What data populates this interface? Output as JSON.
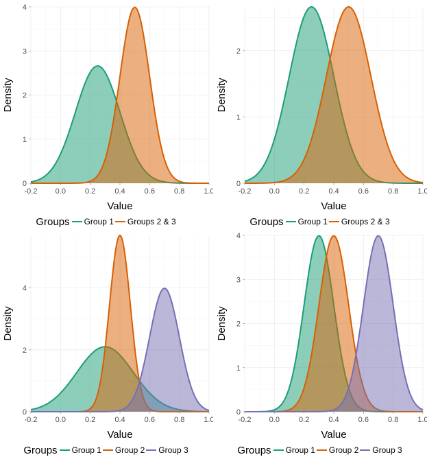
{
  "legend_title": "Groups",
  "colors": {
    "group1": "#1b9e77",
    "group2": "#d95f02",
    "group3": "#7570b3"
  },
  "chart_data": [
    {
      "type": "area",
      "xlabel": "Value",
      "ylabel": "Density",
      "xlim": [
        -0.2,
        1.0
      ],
      "ylim": [
        0,
        4
      ],
      "x_ticks": [
        "-0.2",
        "0.0",
        "0.2",
        "0.4",
        "0.6",
        "0.8",
        "1.0"
      ],
      "y_ticks": [
        "0",
        "1",
        "2",
        "3",
        "4"
      ],
      "legend_title": "Groups",
      "series": [
        {
          "name": "Group 1",
          "mean": 0.25,
          "sd": 0.15,
          "peak": 2.66,
          "color": "#1b9e77"
        },
        {
          "name": "Groups 2 & 3",
          "mean": 0.5,
          "sd": 0.1,
          "peak": 3.99,
          "color": "#d95f02"
        }
      ]
    },
    {
      "type": "area",
      "xlabel": "Value",
      "ylabel": "Density",
      "xlim": [
        -0.2,
        1.0
      ],
      "ylim": [
        0,
        2.66
      ],
      "x_ticks": [
        "-0.2",
        "0.0",
        "0.2",
        "0.4",
        "0.6",
        "0.8",
        "1.0"
      ],
      "y_ticks": [
        "0",
        "1",
        "2"
      ],
      "legend_title": "Groups",
      "series": [
        {
          "name": "Group 1",
          "mean": 0.25,
          "sd": 0.15,
          "peak": 2.66,
          "color": "#1b9e77"
        },
        {
          "name": "Groups 2 & 3",
          "mean": 0.5,
          "sd": 0.15,
          "peak": 2.66,
          "color": "#d95f02"
        }
      ]
    },
    {
      "type": "area",
      "xlabel": "Value",
      "ylabel": "Density",
      "xlim": [
        -0.2,
        1.0
      ],
      "ylim": [
        0,
        5.7
      ],
      "x_ticks": [
        "-0.2",
        "0.0",
        "0.2",
        "0.4",
        "0.6",
        "0.8",
        "1.0"
      ],
      "y_ticks": [
        "0",
        "2",
        "4"
      ],
      "legend_title": "Groups",
      "series": [
        {
          "name": "Group 1",
          "mean": 0.3,
          "sd": 0.19,
          "peak": 2.1,
          "color": "#1b9e77"
        },
        {
          "name": "Group 2",
          "mean": 0.4,
          "sd": 0.07,
          "peak": 5.7,
          "color": "#d95f02"
        },
        {
          "name": "Group 3",
          "mean": 0.7,
          "sd": 0.1,
          "peak": 3.99,
          "color": "#7570b3"
        }
      ]
    },
    {
      "type": "area",
      "xlabel": "Value",
      "ylabel": "Density",
      "xlim": [
        -0.2,
        1.0
      ],
      "ylim": [
        0,
        4
      ],
      "x_ticks": [
        "-0.2",
        "0.0",
        "0.2",
        "0.4",
        "0.6",
        "0.8",
        "1.0"
      ],
      "y_ticks": [
        "0",
        "1",
        "2",
        "3",
        "4"
      ],
      "legend_title": "Groups",
      "series": [
        {
          "name": "Group 1",
          "mean": 0.3,
          "sd": 0.1,
          "peak": 3.99,
          "color": "#1b9e77"
        },
        {
          "name": "Group 2",
          "mean": 0.4,
          "sd": 0.1,
          "peak": 3.99,
          "color": "#d95f02"
        },
        {
          "name": "Group 3",
          "mean": 0.7,
          "sd": 0.1,
          "peak": 3.99,
          "color": "#7570b3"
        }
      ]
    }
  ]
}
